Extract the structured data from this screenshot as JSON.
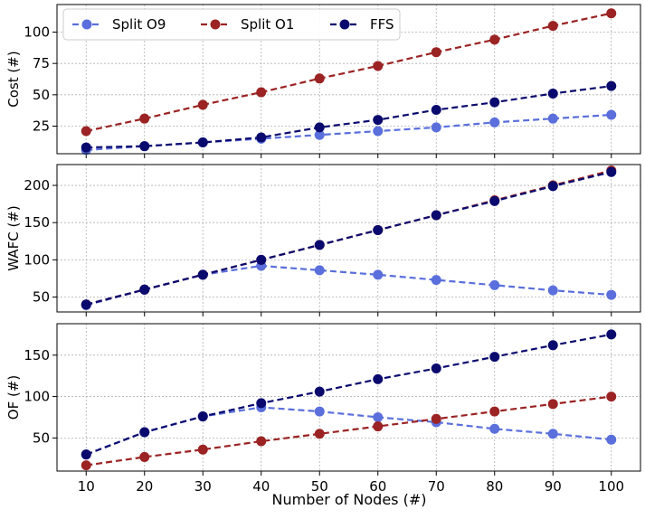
{
  "chart_data": {
    "type": "line",
    "xlabel": "Number of Nodes (#)",
    "x": [
      10,
      20,
      30,
      40,
      50,
      60,
      70,
      80,
      90,
      100
    ],
    "xlim": [
      5,
      105
    ],
    "grid": true,
    "legend": {
      "placement": "top-left",
      "entries": [
        "Split O9",
        "Split O1",
        "FFS"
      ]
    },
    "colors": {
      "Split O9": "#5a6fdc",
      "Split O1": "#9b2323",
      "FFS": "#0a0a6e"
    },
    "panels": [
      {
        "ylabel": "Cost (#)",
        "ylim": [
          3,
          122
        ],
        "yticks": [
          25,
          50,
          75,
          100
        ],
        "series": [
          {
            "name": "Split O9",
            "values": [
              6,
              9,
              12,
              15,
              18,
              21,
              24,
              28,
              31,
              34
            ]
          },
          {
            "name": "Split O1",
            "values": [
              21,
              31,
              42,
              52,
              63,
              73,
              84,
              94,
              105,
              115
            ]
          },
          {
            "name": "FFS",
            "values": [
              8,
              9,
              12,
              16,
              24,
              30,
              38,
              44,
              51,
              57
            ]
          }
        ]
      },
      {
        "ylabel": "WAFC (#)",
        "ylim": [
          30,
          228
        ],
        "yticks": [
          50,
          100,
          150,
          200
        ],
        "series": [
          {
            "name": "Split O9",
            "values": [
              39,
              60,
              80,
              92,
              86,
              80,
              73,
              66,
              59,
              53
            ]
          },
          {
            "name": "Split O1",
            "values": [
              40,
              60,
              80,
              100,
              120,
              140,
              160,
              180,
              200,
              220
            ]
          },
          {
            "name": "FFS",
            "values": [
              40,
              60,
              80,
              100,
              120,
              140,
              160,
              179,
              199,
              218
            ]
          }
        ]
      },
      {
        "ylabel": "OF (#)",
        "ylim": [
          10,
          188
        ],
        "yticks": [
          50,
          100,
          150
        ],
        "series": [
          {
            "name": "Split O9",
            "values": [
              30,
              57,
              76,
              87,
              82,
              75,
              69,
              61,
              55,
              48
            ]
          },
          {
            "name": "Split O1",
            "values": [
              17,
              27,
              36,
              46,
              55,
              64,
              73,
              82,
              91,
              100
            ]
          },
          {
            "name": "FFS",
            "values": [
              30,
              57,
              76,
              92,
              106,
              121,
              134,
              148,
              162,
              175
            ]
          }
        ]
      }
    ]
  }
}
